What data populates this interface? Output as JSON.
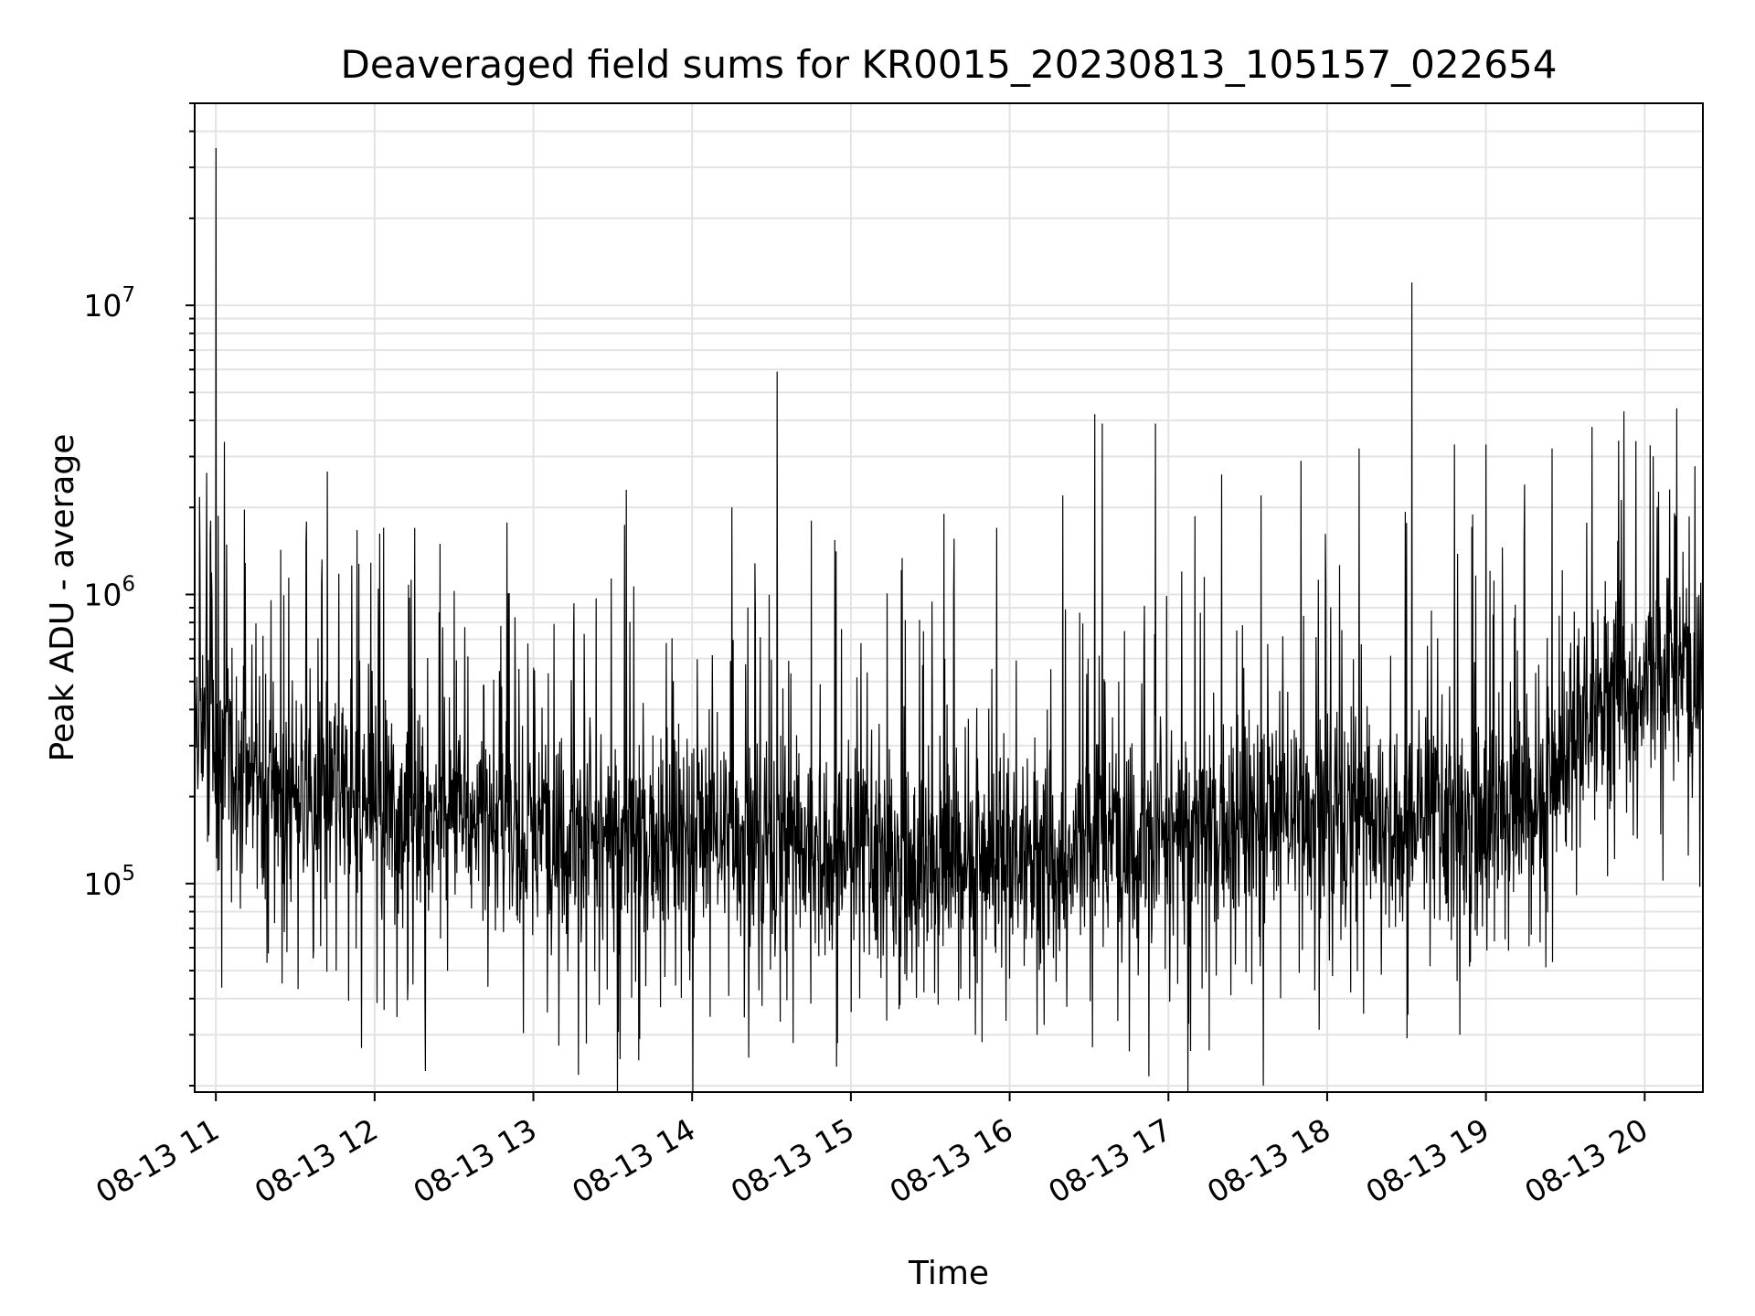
{
  "chart_data": {
    "type": "line",
    "title": "Deaveraged field sums for KR0015_20230813_105157_022654",
    "xlabel": "Time",
    "ylabel": "Peak ADU - average",
    "y_scale": "log",
    "grid": true,
    "x_range": [
      "08-13 10:52",
      "08-13 20:22"
    ],
    "ylim": [
      19000,
      50000000
    ],
    "x_ticks": [
      "08-13 11",
      "08-13 12",
      "08-13 13",
      "08-13 14",
      "08-13 15",
      "08-13 16",
      "08-13 17",
      "08-13 18",
      "08-13 19",
      "08-13 20"
    ],
    "y_ticks": [
      {
        "value": 100000,
        "base": "10",
        "exp": "5"
      },
      {
        "value": 1000000,
        "base": "10",
        "exp": "6"
      },
      {
        "value": 10000000,
        "base": "10",
        "exp": "7"
      }
    ],
    "line_color": "#000000",
    "grid_color": "#e3e3e3",
    "series": [
      {
        "baseline": [
          [
            "08-13 10:52",
            330000
          ],
          [
            "08-13 11:00",
            330000
          ],
          [
            "08-13 11:15",
            210000
          ],
          [
            "08-13 11:45",
            200000
          ],
          [
            "08-13 12:30",
            170000
          ],
          [
            "08-13 13:00",
            150000
          ],
          [
            "08-13 13:30",
            140000
          ],
          [
            "08-13 14:00",
            150000
          ],
          [
            "08-13 14:30",
            140000
          ],
          [
            "08-13 15:00",
            130000
          ],
          [
            "08-13 15:30",
            110000
          ],
          [
            "08-13 16:00",
            125000
          ],
          [
            "08-13 16:30",
            135000
          ],
          [
            "08-13 17:00",
            145000
          ],
          [
            "08-13 17:30",
            165000
          ],
          [
            "08-13 18:00",
            180000
          ],
          [
            "08-13 18:30",
            165000
          ],
          [
            "08-13 19:00",
            165000
          ],
          [
            "08-13 19:20",
            180000
          ],
          [
            "08-13 19:35",
            350000
          ],
          [
            "08-13 19:50",
            500000
          ],
          [
            "08-13 20:22",
            520000
          ]
        ],
        "spikes": [
          [
            "08-13 11:00",
            35000000
          ],
          [
            "08-13 11:00",
            5500000
          ],
          [
            "08-13 10:58",
            1800000
          ],
          [
            "08-13 14:32",
            5900000
          ],
          [
            "08-13 18:32",
            12000000
          ],
          [
            "08-13 16:32",
            4200000
          ],
          [
            "08-13 16:35",
            3900000
          ],
          [
            "08-13 16:55",
            3900000
          ],
          [
            "08-13 20:12",
            4400000
          ],
          [
            "08-13 19:52",
            4300000
          ],
          [
            "08-13 19:50",
            3400000
          ],
          [
            "08-13 19:40",
            3800000
          ],
          [
            "08-13 19:25",
            3200000
          ],
          [
            "08-13 19:00",
            3300000
          ],
          [
            "08-13 18:48",
            3300000
          ],
          [
            "08-13 18:12",
            3200000
          ],
          [
            "08-13 17:50",
            2900000
          ],
          [
            "08-13 17:35",
            2200000
          ],
          [
            "08-13 17:20",
            2600000
          ],
          [
            "08-13 16:20",
            2200000
          ],
          [
            "08-13 15:55",
            1700000
          ],
          [
            "08-13 15:35",
            1900000
          ],
          [
            "08-13 13:35",
            2300000
          ],
          [
            "08-13 14:15",
            2000000
          ],
          [
            "08-13 14:45",
            1800000
          ],
          [
            "08-13 12:15",
            1700000
          ]
        ],
        "dips": [
          [
            "08-13 11:55",
            27000
          ],
          [
            "08-13 13:35",
            27000
          ],
          [
            "08-13 13:40",
            29000
          ],
          [
            "08-13 13:20",
            28000
          ],
          [
            "08-13 18:50",
            30000
          ],
          [
            "08-13 15:00",
            36000
          ]
        ]
      }
    ]
  }
}
